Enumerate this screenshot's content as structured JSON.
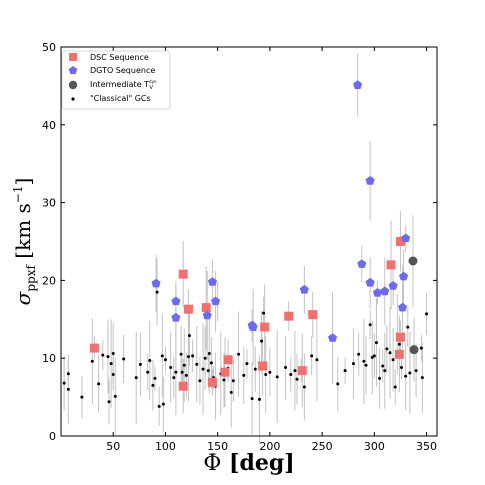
{
  "chart_data": {
    "type": "scatter",
    "xlabel": {
      "base": "Φ",
      "text": " [deg]"
    },
    "ylabel": {
      "base": "σ",
      "sub": "ppxf",
      "text": " [km s",
      "sup": "−1",
      "close": "]"
    },
    "xlim": [
      0,
      360
    ],
    "ylim": [
      0,
      50
    ],
    "xticks": [
      50,
      100,
      150,
      200,
      250,
      300,
      350
    ],
    "yticks": [
      0,
      10,
      20,
      30,
      40,
      50
    ],
    "legend_position": "top-left",
    "series": [
      {
        "name": "DSC Sequence",
        "marker": "square",
        "color": "#f07070",
        "points": [
          [
            32,
            11.3
          ],
          [
            117,
            20.8
          ],
          [
            122,
            16.3
          ],
          [
            139,
            16.5
          ],
          [
            117,
            6.4
          ],
          [
            145,
            6.9
          ],
          [
            157,
            8.2
          ],
          [
            160,
            9.8
          ],
          [
            195,
            14.0
          ],
          [
            193,
            9.0
          ],
          [
            218,
            15.4
          ],
          [
            231,
            8.4
          ],
          [
            241,
            15.6
          ],
          [
            316,
            22.0
          ],
          [
            325,
            25.0
          ],
          [
            325,
            12.7
          ],
          [
            324,
            10.5
          ]
        ]
      },
      {
        "name": "DGTO Sequence",
        "marker": "pentagon",
        "color": "#6b6bef",
        "points": [
          [
            91,
            19.6
          ],
          [
            110,
            17.3
          ],
          [
            110,
            15.2
          ],
          [
            145,
            19.8
          ],
          [
            140,
            15.5
          ],
          [
            148,
            17.3
          ],
          [
            183,
            14.2
          ],
          [
            184,
            14.0
          ],
          [
            233,
            18.8
          ],
          [
            260,
            12.6
          ],
          [
            284,
            45.1
          ],
          [
            288,
            22.1
          ],
          [
            296,
            32.8
          ],
          [
            296,
            19.7
          ],
          [
            303,
            18.4
          ],
          [
            310,
            18.6
          ],
          [
            318,
            19.3
          ],
          [
            327,
            16.5
          ],
          [
            328,
            20.5
          ],
          [
            330,
            25.4
          ]
        ]
      },
      {
        "name": "Intermediate T",
        "name_sub": "V",
        "name_sup": "dyn",
        "marker": "circle",
        "color": "#555555",
        "points": [
          [
            337,
            22.5
          ],
          [
            338,
            11.1
          ]
        ]
      },
      {
        "name": "\"Classical\" GCs",
        "marker": "dot",
        "color": "#000000",
        "points": [
          [
            3,
            6.8
          ],
          [
            7,
            8.0
          ],
          [
            7,
            6.0
          ],
          [
            20,
            5.0
          ],
          [
            30,
            9.6
          ],
          [
            36,
            6.7
          ],
          [
            40,
            10.4
          ],
          [
            45,
            10.2
          ],
          [
            46,
            4.4
          ],
          [
            48,
            9.3
          ],
          [
            50,
            10.6
          ],
          [
            50,
            7.9
          ],
          [
            52,
            5.1
          ],
          [
            60,
            9.9
          ],
          [
            72,
            7.5
          ],
          [
            76,
            9.2
          ],
          [
            83,
            8.2
          ],
          [
            85,
            9.7
          ],
          [
            88,
            6.5
          ],
          [
            90,
            7.4
          ],
          [
            92,
            18.5
          ],
          [
            94,
            3.8
          ],
          [
            97,
            10.3
          ],
          [
            98,
            4.1
          ],
          [
            100,
            9.8
          ],
          [
            105,
            8.8
          ],
          [
            108,
            7.5
          ],
          [
            110,
            8.2
          ],
          [
            115,
            10.5
          ],
          [
            116,
            8.2
          ],
          [
            118,
            9.1
          ],
          [
            120,
            7.8
          ],
          [
            122,
            10.2
          ],
          [
            123,
            12.9
          ],
          [
            126,
            10.3
          ],
          [
            130,
            9.2
          ],
          [
            133,
            7.1
          ],
          [
            136,
            8.6
          ],
          [
            138,
            10.0
          ],
          [
            141,
            8.4
          ],
          [
            142,
            10.6
          ],
          [
            144,
            9.4
          ],
          [
            146,
            7.5
          ],
          [
            148,
            6.4
          ],
          [
            150,
            17.3
          ],
          [
            153,
            8.0
          ],
          [
            156,
            7.2
          ],
          [
            160,
            8.7
          ],
          [
            163,
            5.6
          ],
          [
            165,
            7.1
          ],
          [
            170,
            10.5
          ],
          [
            175,
            7.8
          ],
          [
            178,
            9.3
          ],
          [
            183,
            4.8
          ],
          [
            186,
            8.6
          ],
          [
            190,
            4.7
          ],
          [
            192,
            12.2
          ],
          [
            194,
            15.8
          ],
          [
            196,
            7.9
          ],
          [
            200,
            8.2
          ],
          [
            207,
            7.6
          ],
          [
            215,
            8.8
          ],
          [
            220,
            7.9
          ],
          [
            224,
            8.4
          ],
          [
            226,
            7.3
          ],
          [
            230,
            8.5
          ],
          [
            233,
            6.3
          ],
          [
            240,
            10.3
          ],
          [
            245,
            9.8
          ],
          [
            265,
            6.7
          ],
          [
            272,
            8.4
          ],
          [
            280,
            9.3
          ],
          [
            285,
            10.5
          ],
          [
            290,
            9.6
          ],
          [
            292,
            9.1
          ],
          [
            296,
            14.3
          ],
          [
            298,
            10.1
          ],
          [
            300,
            10.3
          ],
          [
            302,
            12.0
          ],
          [
            305,
            7.4
          ],
          [
            308,
            9.0
          ],
          [
            310,
            8.4
          ],
          [
            312,
            11.2
          ],
          [
            315,
            10.7
          ],
          [
            318,
            9.8
          ],
          [
            320,
            6.3
          ],
          [
            322,
            13.1
          ],
          [
            324,
            11.8
          ],
          [
            326,
            8.8
          ],
          [
            330,
            7.7
          ],
          [
            332,
            14.0
          ],
          [
            334,
            8.1
          ],
          [
            340,
            8.4
          ],
          [
            345,
            11.3
          ],
          [
            346,
            7.5
          ],
          [
            350,
            15.7
          ]
        ]
      }
    ]
  }
}
